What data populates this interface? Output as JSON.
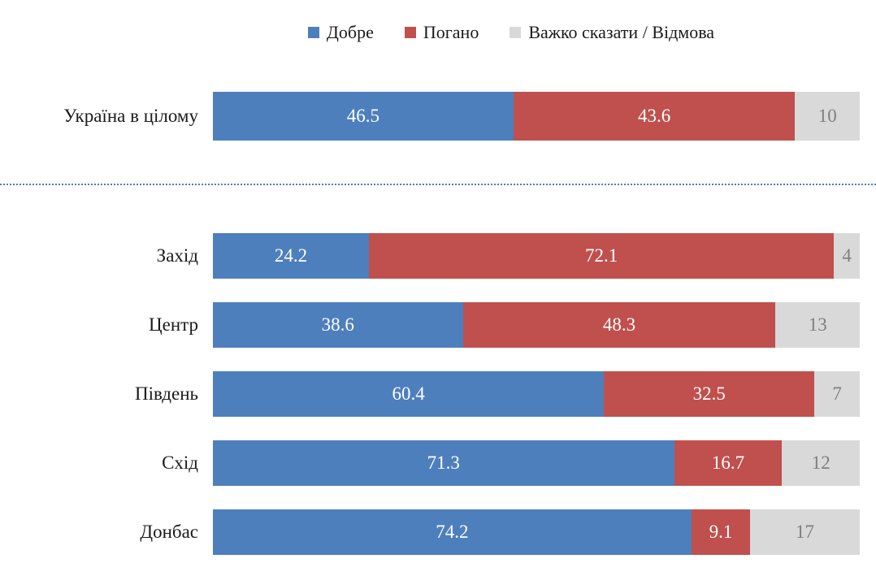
{
  "chart_data": {
    "type": "bar",
    "orientation": "horizontal",
    "stacked": true,
    "title": "",
    "xlabel": "",
    "ylabel": "",
    "xlim": [
      0,
      100
    ],
    "grid": false,
    "legend_position": "top",
    "categories": [
      "Україна в цілому",
      "Захід",
      "Центр",
      "Південь",
      "Схід",
      "Донбас"
    ],
    "series": [
      {
        "name": "Добре",
        "color": "#4e7fbd",
        "label_color": "#ffffff",
        "values": [
          46.5,
          24.2,
          38.6,
          60.4,
          71.3,
          74.2
        ]
      },
      {
        "name": "Погано",
        "color": "#c0504d",
        "label_color": "#ffffff",
        "values": [
          43.6,
          72.1,
          48.3,
          32.5,
          16.7,
          9.1
        ]
      },
      {
        "name": "Важко сказати / Відмова",
        "color": "#d9d9d9",
        "label_color": "#7f7f7f",
        "values": [
          10,
          4,
          13,
          7,
          12,
          17
        ]
      }
    ],
    "separator": {
      "after_category": "Україна в цілому",
      "style": "dotted",
      "color": "#4a7ebb"
    }
  }
}
